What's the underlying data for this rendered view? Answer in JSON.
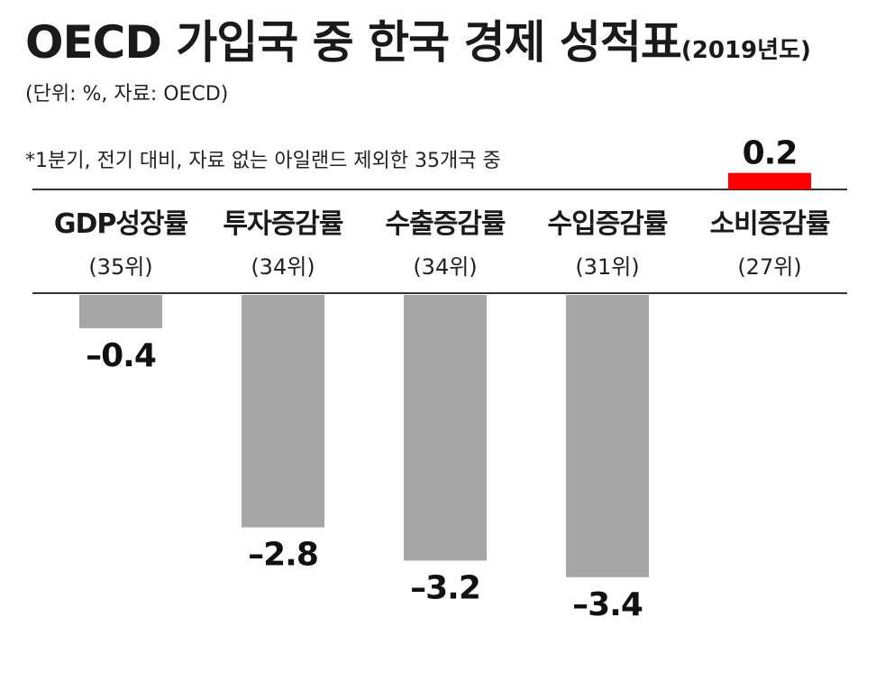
{
  "title": {
    "main": "OECD 가입국 중 한국 경제 성적표",
    "year": "(2019년도)"
  },
  "unit_note": "(단위: %, 자료: OECD)",
  "footnote": "*1분기, 전기 대비, 자료 없는 아일랜드 제외한 35개국 중",
  "colors": {
    "negative_bar": "#a6a6a6",
    "positive_bar": "#ff0000",
    "rule_line": "#333333"
  },
  "chart_data": {
    "type": "bar",
    "categories": [
      "GDP성장률",
      "투자증감률",
      "수출증감률",
      "수입증감률",
      "소비증감률"
    ],
    "ranks": [
      "(35위)",
      "(34위)",
      "(34위)",
      "(31위)",
      "(27위)"
    ],
    "values": [
      -0.4,
      -2.8,
      -3.2,
      -3.4,
      0.2
    ],
    "value_labels": [
      "–0.4",
      "–2.8",
      "–3.2",
      "–3.4",
      "0.2"
    ],
    "xlabel": "",
    "ylabel": "",
    "grid": false,
    "legend": "none"
  }
}
